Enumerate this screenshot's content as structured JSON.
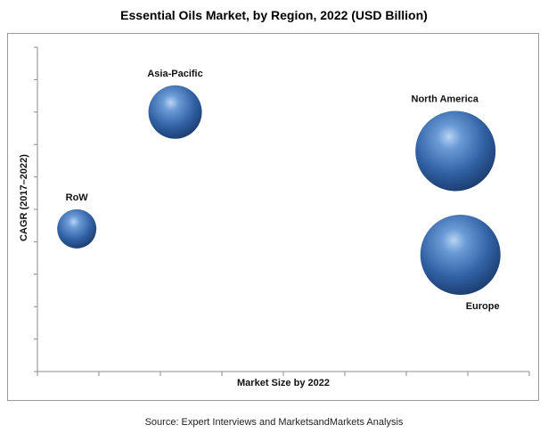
{
  "chart_data": {
    "type": "bubble",
    "title": "Essential Oils Market, by Region, 2022 (USD Billion)",
    "xlabel": "Market Size by 2022",
    "ylabel": "CAGR (2017–2022)",
    "xlim": [
      0,
      10
    ],
    "ylim": [
      0,
      10
    ],
    "x_ticks": 9,
    "y_ticks": 11,
    "points": [
      {
        "name": "RoW",
        "x": 0.8,
        "y": 4.4,
        "size": 2.2,
        "label_pos": "above"
      },
      {
        "name": "Asia-Pacific",
        "x": 2.8,
        "y": 8.0,
        "size": 3.0,
        "label_pos": "above"
      },
      {
        "name": "North America",
        "x": 8.5,
        "y": 6.8,
        "size": 4.5,
        "label_pos": "above"
      },
      {
        "name": "Europe",
        "x": 8.6,
        "y": 3.6,
        "size": 4.5,
        "label_pos": "below"
      }
    ],
    "color": "#3b6fb6"
  },
  "source": "Source: Expert Interviews and MarketsandMarkets Analysis"
}
